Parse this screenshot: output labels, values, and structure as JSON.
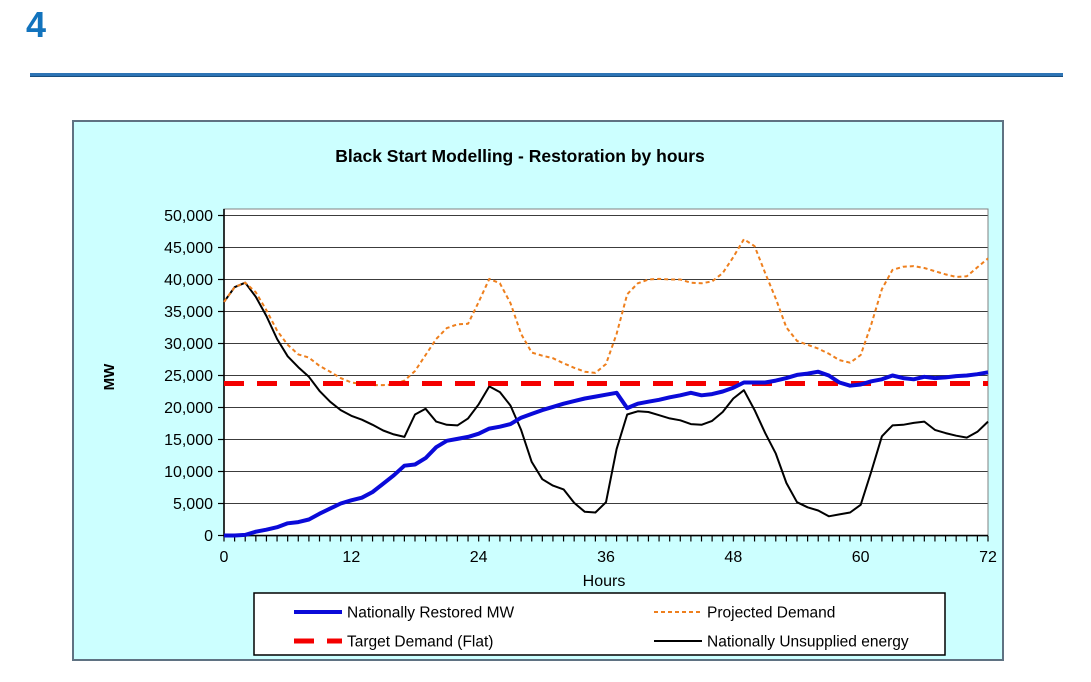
{
  "page": {
    "number": "4"
  },
  "colors": {
    "page_number_blue": "#1273bd",
    "header_rule_blue": "#2e75b6",
    "chart_background": "#ccffff",
    "plot_background": "#ffffff",
    "restored_blue": "#0a0ad9",
    "projected_orange": "#ee7f1d",
    "target_red": "#f40000",
    "unsupplied_black": "#000000"
  },
  "chart_data": {
    "type": "line",
    "title": "Black Start Modelling - Restoration by hours",
    "xlabel": "Hours",
    "ylabel": "MW",
    "xlim": [
      0,
      72
    ],
    "ylim": [
      0,
      50000
    ],
    "grid": "horizontal",
    "legend_position": "bottom",
    "x_ticks": [
      0,
      12,
      24,
      36,
      48,
      60,
      72
    ],
    "x_minor_tick_interval": 1,
    "y_ticks": [
      0,
      5000,
      10000,
      15000,
      20000,
      25000,
      30000,
      35000,
      40000,
      45000,
      50000
    ],
    "y_tick_labels": [
      "0",
      "5,000",
      "10,000",
      "15,000",
      "20,000",
      "25,000",
      "30,000",
      "35,000",
      "40,000",
      "45,000",
      "50,000"
    ],
    "x": [
      0,
      1,
      2,
      3,
      4,
      5,
      6,
      7,
      8,
      9,
      10,
      11,
      12,
      13,
      14,
      15,
      16,
      17,
      18,
      19,
      20,
      21,
      22,
      23,
      24,
      25,
      26,
      27,
      28,
      29,
      30,
      31,
      32,
      33,
      34,
      35,
      36,
      37,
      38,
      39,
      40,
      41,
      42,
      43,
      44,
      45,
      46,
      47,
      48,
      49,
      50,
      51,
      52,
      53,
      54,
      55,
      56,
      57,
      58,
      59,
      60,
      61,
      62,
      63,
      64,
      65,
      66,
      67,
      68,
      69,
      70,
      71,
      72
    ],
    "series": [
      {
        "name": "Nationally Restored MW",
        "color": "#0a0ad9",
        "line_style": "solid",
        "width": 4,
        "z": 4,
        "values": [
          0,
          0,
          100,
          600,
          900,
          1300,
          1900,
          2100,
          2500,
          3400,
          4200,
          5000,
          5500,
          5900,
          6800,
          8100,
          9400,
          10900,
          11100,
          12100,
          13800,
          14800,
          15100,
          15400,
          15900,
          16700,
          17000,
          17400,
          18400,
          19000,
          19600,
          20100,
          20600,
          21000,
          21400,
          21700,
          22000,
          22300,
          19900,
          20600,
          20900,
          21200,
          21600,
          21900,
          22300,
          21900,
          22100,
          22500,
          23100,
          23900,
          23900,
          23900,
          24200,
          24600,
          25100,
          25300,
          25600,
          25000,
          23900,
          23400,
          23600,
          24100,
          24400,
          25000,
          24600,
          24400,
          24800,
          24600,
          24700,
          24900,
          25000,
          25200,
          25500
        ]
      },
      {
        "name": "Projected Demand",
        "color": "#ee7f1d",
        "line_style": "dashed",
        "dash": "4,3",
        "width": 2,
        "z": 2,
        "values": [
          36500,
          38800,
          39500,
          38000,
          35200,
          32000,
          29800,
          28300,
          27800,
          26500,
          25600,
          24600,
          23900,
          23700,
          23500,
          23500,
          23600,
          24200,
          25700,
          28200,
          30700,
          32400,
          33000,
          33100,
          36500,
          40100,
          39400,
          36300,
          31500,
          28600,
          28100,
          27700,
          26900,
          26200,
          25600,
          25400,
          26800,
          31500,
          37700,
          39400,
          40000,
          40100,
          40000,
          40000,
          39500,
          39400,
          39700,
          41000,
          43500,
          46300,
          45200,
          41000,
          37000,
          32500,
          30400,
          29800,
          29200,
          28400,
          27400,
          27000,
          28200,
          33000,
          38500,
          41500,
          42000,
          42100,
          41800,
          41300,
          40800,
          40400,
          40500,
          41900,
          43300
        ]
      },
      {
        "name": "Target Demand (Flat)",
        "color": "#f40000",
        "line_style": "long-dash",
        "dash": "20,13",
        "width": 5,
        "z": 3,
        "constant_value": 23750
      },
      {
        "name": "Nationally Unsupplied energy",
        "color": "#000000",
        "line_style": "solid",
        "width": 2,
        "z": 1,
        "values": [
          36500,
          38800,
          39500,
          37300,
          34300,
          30700,
          28000,
          26300,
          24800,
          22600,
          20900,
          19600,
          18700,
          18100,
          17300,
          16400,
          15800,
          15400,
          18900,
          19800,
          17800,
          17300,
          17200,
          18300,
          20500,
          23300,
          22400,
          20300,
          16500,
          11500,
          8800,
          7800,
          7200,
          5100,
          3700,
          3600,
          5200,
          13500,
          18900,
          19400,
          19300,
          18800,
          18300,
          18000,
          17400,
          17300,
          17900,
          19300,
          21400,
          22700,
          19600,
          16000,
          12800,
          8200,
          5200,
          4400,
          3900,
          3000,
          3300,
          3600,
          4800,
          10000,
          15500,
          17200,
          17300,
          17600,
          17800,
          16500,
          16000,
          15600,
          15300,
          16200,
          17800
        ]
      }
    ]
  }
}
